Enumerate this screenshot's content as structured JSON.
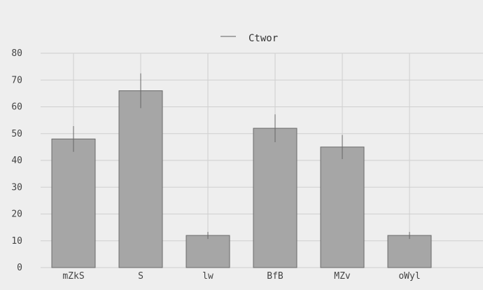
{
  "chart_data": {
    "type": "bar",
    "categories": [
      "mZkS",
      "S",
      "lw",
      "BfB",
      "MZv",
      "oWyl"
    ],
    "series": [
      {
        "name": "Ctwor",
        "values": [
          48,
          66,
          12,
          52,
          45,
          12
        ],
        "errors": [
          4.8,
          6.5,
          1.3,
          5.2,
          4.5,
          1.3
        ],
        "color": "#a6a6a6"
      }
    ],
    "title": "",
    "xlabel": "",
    "ylabel": "",
    "ylim": [
      0,
      80
    ],
    "yticks": [
      0,
      10,
      20,
      30,
      40,
      50,
      60,
      70,
      80
    ],
    "grid": true,
    "legend": "top-center",
    "colors": {
      "background": "#eeeeee",
      "grid": "#cfcfcf",
      "bar_edge": "#6a6a6a",
      "error_bar": "#666666",
      "text": "#444444"
    }
  }
}
